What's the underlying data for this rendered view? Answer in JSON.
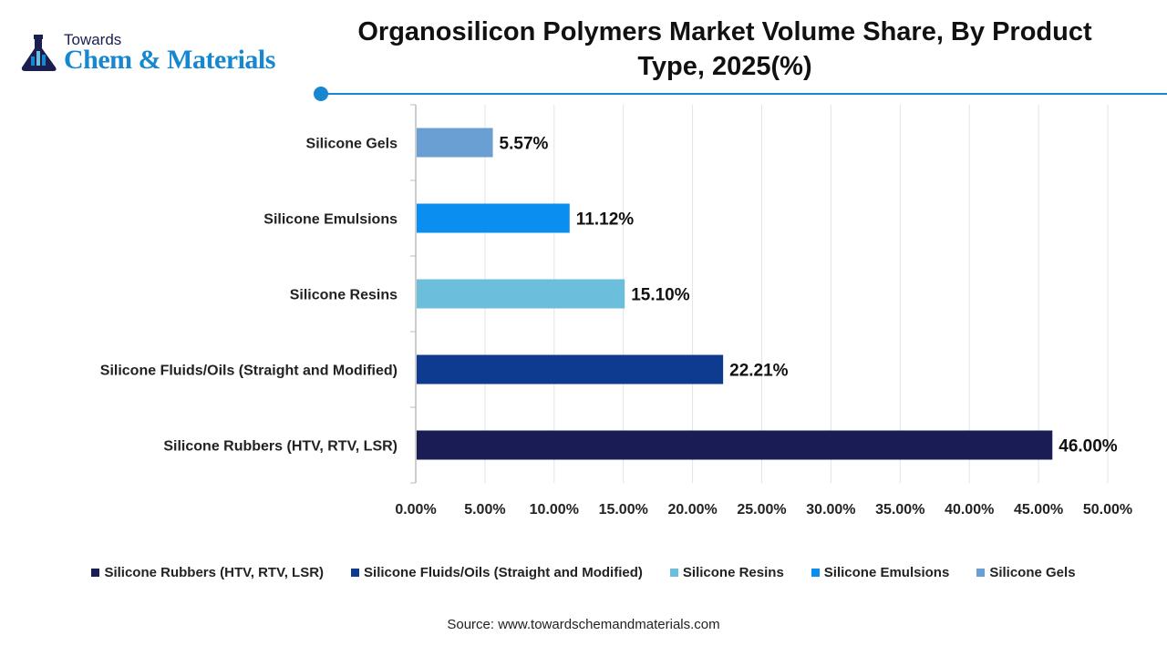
{
  "logo": {
    "line1": "Towards",
    "line2": "Chem & Materials"
  },
  "title": "Organosilicon Polymers Market Volume Share, By Product Type, 2025(%)",
  "chart_data": {
    "type": "bar",
    "orientation": "horizontal",
    "title": "Organosilicon Polymers Market Volume Share, By Product Type, 2025(%)",
    "categories": [
      "Silicone Gels",
      "Silicone Emulsions",
      "Silicone Resins",
      "Silicone Fluids/Oils (Straight and Modified)",
      "Silicone Rubbers (HTV, RTV, LSR)"
    ],
    "values": [
      5.57,
      11.12,
      15.1,
      22.21,
      46.0
    ],
    "data_labels": [
      "5.57%",
      "11.12%",
      "15.10%",
      "22.21%",
      "46.00%"
    ],
    "colors": [
      "#6a9fd3",
      "#0a8ff0",
      "#6bbfdc",
      "#0e3a8f",
      "#1a1d55"
    ],
    "xlim": [
      0,
      50
    ],
    "xticks": [
      "0.00%",
      "5.00%",
      "10.00%",
      "15.00%",
      "20.00%",
      "25.00%",
      "30.00%",
      "35.00%",
      "40.00%",
      "45.00%",
      "50.00%"
    ],
    "grid": true,
    "legend_placement": "bottom",
    "legend": [
      {
        "label": "Silicone Rubbers (HTV, RTV, LSR)",
        "color": "#1a1d55"
      },
      {
        "label": "Silicone Fluids/Oils (Straight and Modified)",
        "color": "#0e3a8f"
      },
      {
        "label": "Silicone Resins",
        "color": "#6bbfdc"
      },
      {
        "label": "Silicone Emulsions",
        "color": "#0a8ff0"
      },
      {
        "label": "Silicone Gels",
        "color": "#6a9fd3"
      }
    ]
  },
  "source": "Source: www.towardschemandmaterials.com"
}
